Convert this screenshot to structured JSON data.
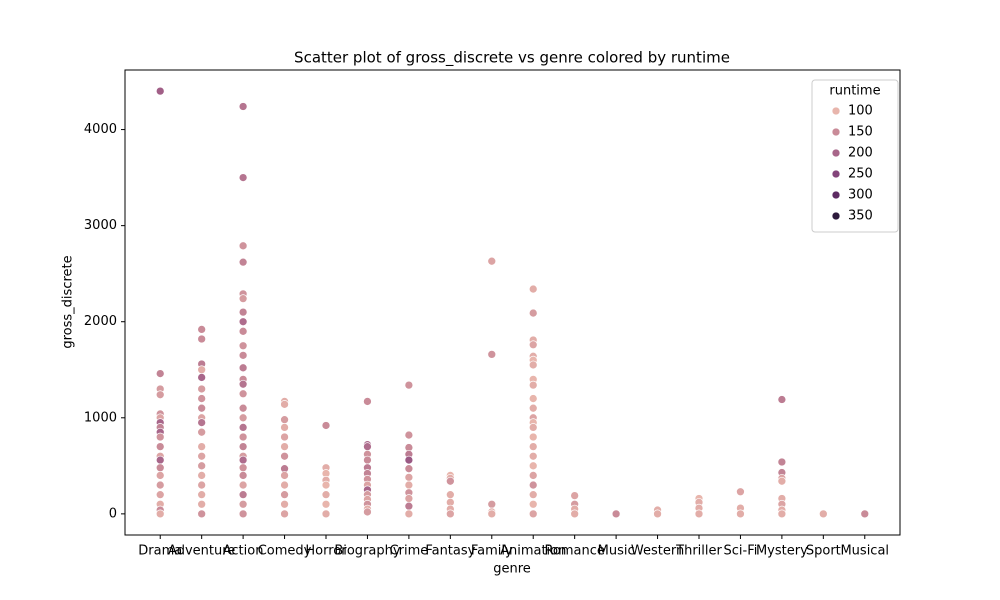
{
  "chart_data": {
    "type": "scatter",
    "title": "Scatter plot of gross_discrete vs genre colored by runtime",
    "xlabel": "genre",
    "ylabel": "gross_discrete",
    "ylim": [
      -220,
      4620
    ],
    "yticks": [
      0,
      1000,
      2000,
      3000,
      4000
    ],
    "xlim": [
      -0.85,
      17.85
    ],
    "legend": {
      "title": "runtime",
      "position": "upper right",
      "entries": [
        {
          "value": 100,
          "color": "#e8b5ac"
        },
        {
          "value": 150,
          "color": "#c98b98"
        },
        {
          "value": 200,
          "color": "#a8668a"
        },
        {
          "value": 250,
          "color": "#84457b"
        },
        {
          "value": 300,
          "color": "#5d2b63"
        },
        {
          "value": 350,
          "color": "#2d1a3c"
        }
      ]
    },
    "groups": [
      {
        "category": "Drama",
        "values": [
          4400,
          1460,
          1300,
          1240,
          1040,
          1000,
          950,
          900,
          850,
          800,
          700,
          600,
          560,
          480,
          400,
          300,
          200,
          100,
          40,
          0
        ],
        "runtime": [
          210,
          160,
          130,
          130,
          140,
          120,
          200,
          160,
          200,
          140,
          150,
          120,
          200,
          150,
          120,
          130,
          120,
          110,
          150,
          110
        ]
      },
      {
        "category": "Adventure",
        "values": [
          1920,
          1820,
          1560,
          1500,
          1420,
          1300,
          1200,
          1100,
          1000,
          950,
          850,
          700,
          600,
          500,
          400,
          300,
          200,
          100,
          0
        ],
        "runtime": [
          150,
          150,
          170,
          110,
          200,
          130,
          140,
          150,
          120,
          180,
          130,
          110,
          120,
          130,
          110,
          120,
          110,
          110,
          140
        ]
      },
      {
        "category": "Action",
        "values": [
          4240,
          3500,
          2790,
          2620,
          2290,
          2240,
          2100,
          2000,
          1900,
          1750,
          1650,
          1520,
          1400,
          1350,
          1250,
          1100,
          1000,
          900,
          800,
          700,
          600,
          560,
          480,
          400,
          300,
          200,
          100,
          0
        ],
        "runtime": [
          180,
          180,
          140,
          160,
          140,
          130,
          160,
          190,
          150,
          140,
          150,
          170,
          150,
          180,
          140,
          150,
          130,
          180,
          140,
          160,
          130,
          190,
          140,
          150,
          120,
          170,
          130,
          140
        ]
      },
      {
        "category": "Comedy",
        "values": [
          1170,
          1140,
          980,
          900,
          800,
          700,
          600,
          470,
          400,
          300,
          200,
          100,
          0
        ],
        "runtime": [
          110,
          110,
          130,
          110,
          120,
          110,
          140,
          170,
          120,
          110,
          130,
          110,
          120
        ]
      },
      {
        "category": "Horror",
        "values": [
          920,
          480,
          420,
          350,
          300,
          200,
          100,
          0
        ],
        "runtime": [
          150,
          110,
          100,
          110,
          100,
          110,
          100,
          110
        ]
      },
      {
        "category": "Biography",
        "values": [
          1170,
          720,
          700,
          620,
          560,
          480,
          420,
          360,
          300,
          250,
          200,
          150,
          100,
          50,
          20
        ],
        "runtime": [
          150,
          200,
          190,
          140,
          150,
          170,
          160,
          140,
          120,
          200,
          130,
          120,
          140,
          110,
          130
        ]
      },
      {
        "category": "Crime",
        "values": [
          1340,
          820,
          690,
          620,
          560,
          470,
          380,
          300,
          220,
          160,
          80,
          0
        ],
        "runtime": [
          140,
          140,
          150,
          170,
          220,
          150,
          120,
          110,
          140,
          120,
          170,
          110
        ]
      },
      {
        "category": "Fantasy",
        "values": [
          400,
          370,
          340,
          200,
          120,
          50,
          0
        ],
        "runtime": [
          100,
          110,
          140,
          110,
          110,
          110,
          120
        ]
      },
      {
        "category": "Family",
        "values": [
          2630,
          1660,
          100,
          20,
          0
        ],
        "runtime": [
          120,
          140,
          130,
          110,
          110
        ]
      },
      {
        "category": "Animation",
        "values": [
          2340,
          2090,
          1810,
          1760,
          1640,
          1600,
          1550,
          1400,
          1340,
          1200,
          1100,
          1000,
          950,
          900,
          800,
          700,
          600,
          500,
          400,
          300,
          200,
          100,
          0
        ],
        "runtime": [
          110,
          130,
          110,
          120,
          110,
          100,
          110,
          100,
          110,
          100,
          110,
          120,
          100,
          110,
          100,
          110,
          110,
          100,
          120,
          140,
          110,
          100,
          120
        ]
      },
      {
        "category": "Romance",
        "values": [
          190,
          100,
          50,
          0
        ],
        "runtime": [
          120,
          130,
          110,
          110
        ]
      },
      {
        "category": "Music",
        "values": [
          0
        ],
        "runtime": [
          150
        ]
      },
      {
        "category": "Western",
        "values": [
          40,
          0
        ],
        "runtime": [
          110,
          110
        ]
      },
      {
        "category": "Thriller",
        "values": [
          160,
          120,
          60,
          0
        ],
        "runtime": [
          100,
          110,
          110,
          110
        ]
      },
      {
        "category": "Sci-Fi",
        "values": [
          230,
          60,
          0
        ],
        "runtime": [
          120,
          110,
          110
        ]
      },
      {
        "category": "Mystery",
        "values": [
          1190,
          540,
          430,
          370,
          340,
          160,
          100,
          40,
          0
        ],
        "runtime": [
          170,
          160,
          160,
          120,
          110,
          110,
          120,
          110,
          110
        ]
      },
      {
        "category": "Sport",
        "values": [
          0
        ],
        "runtime": [
          110
        ]
      },
      {
        "category": "Musical",
        "values": [
          0
        ],
        "runtime": [
          150
        ]
      }
    ]
  }
}
